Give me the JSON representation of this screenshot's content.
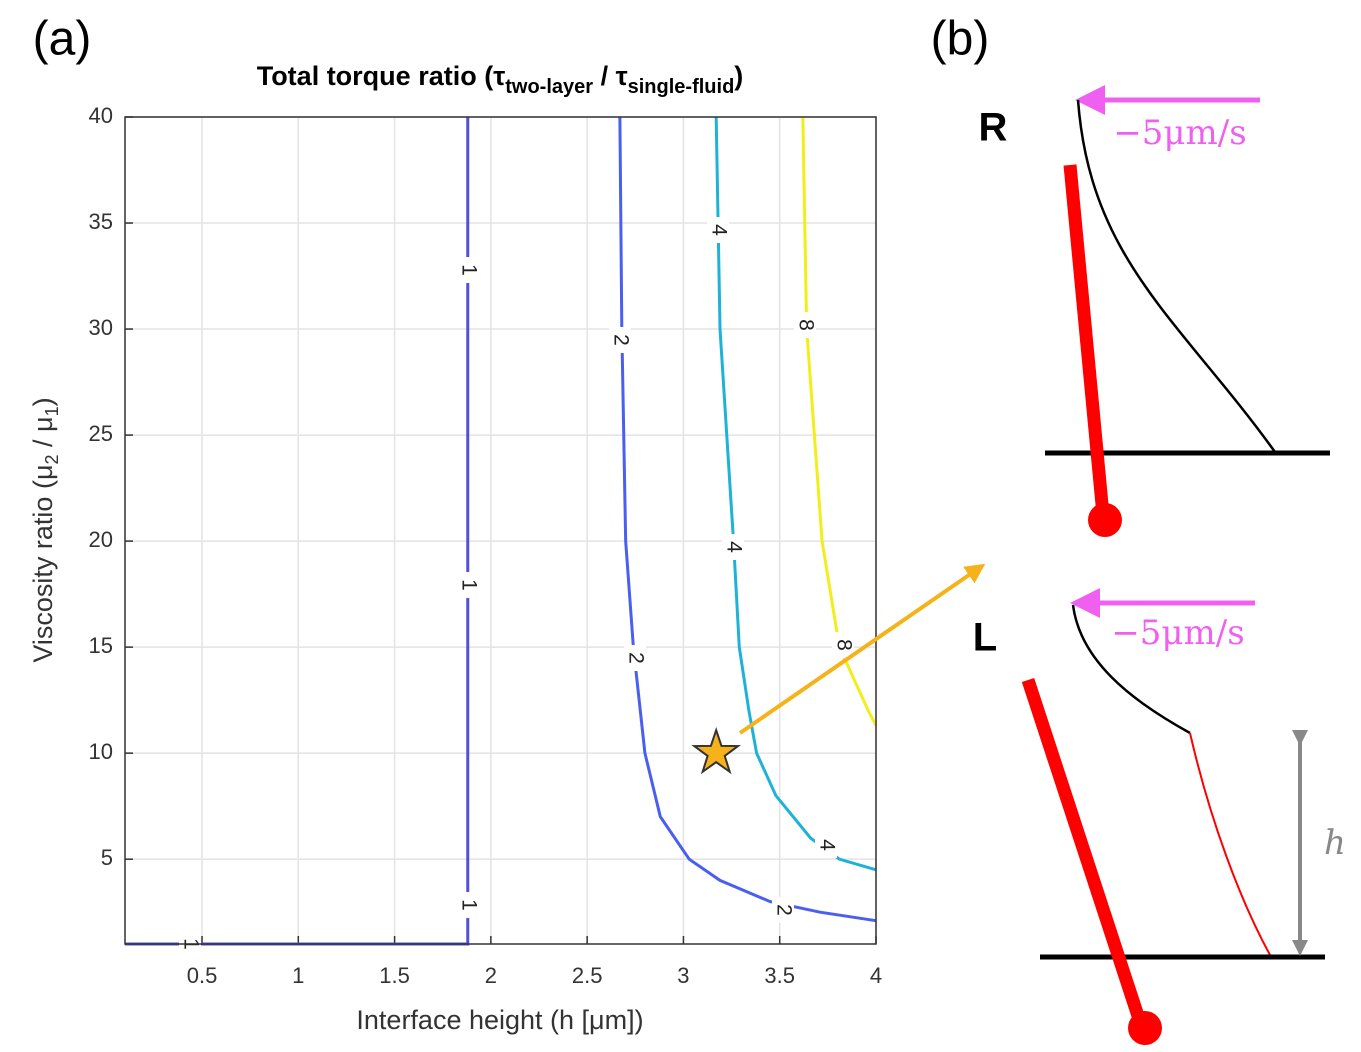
{
  "chart_data": {
    "type": "contour",
    "panel_label": "(a)",
    "title_parts": [
      "Total torque ratio (τ",
      "two-layer",
      " / τ",
      "single-fluid",
      ")"
    ],
    "xlabel": "Interface height (h [μm])",
    "ylabel_parts": [
      "Viscosity ratio (μ",
      "2",
      " / μ",
      "1",
      ")"
    ],
    "xlim": [
      0.1,
      4
    ],
    "ylim": [
      1,
      40
    ],
    "xticks": [
      0.5,
      1,
      1.5,
      2,
      2.5,
      3,
      3.5,
      4
    ],
    "yticks": [
      5,
      10,
      15,
      20,
      25,
      30,
      35,
      40
    ],
    "grid": true,
    "series": [
      {
        "name": "1",
        "color": "#5050d8",
        "x": [
          0.1,
          1.88,
          1.88
        ],
        "y": [
          1,
          1,
          40
        ]
      },
      {
        "name": "2",
        "color": "#4a5ef0",
        "x": [
          2.67,
          2.68,
          2.7,
          2.74,
          2.8,
          2.88,
          3.03,
          3.19,
          3.45,
          3.71,
          4.0
        ],
        "y": [
          40,
          30,
          20,
          15,
          10,
          7,
          5,
          4,
          3,
          2.5,
          2.1
        ]
      },
      {
        "name": "4",
        "color": "#1fb2d8",
        "x": [
          3.17,
          3.19,
          3.26,
          3.29,
          3.34,
          3.38,
          3.48,
          3.66,
          3.81,
          4.0
        ],
        "y": [
          40,
          30,
          20,
          15,
          12,
          10,
          8,
          6,
          5,
          4.5
        ]
      },
      {
        "name": "8",
        "color": "#f2ee1c",
        "x": [
          3.62,
          3.64,
          3.72,
          3.81,
          3.96,
          4.0
        ],
        "y": [
          40,
          30,
          20,
          15,
          12,
          11.3
        ]
      }
    ],
    "marker": {
      "x": 3.17,
      "y": 10,
      "color": "#f5b21b"
    }
  },
  "diagram": {
    "panel_label": "(b)",
    "top_label": "R",
    "bottom_label": "L",
    "top_velocity": "−5μm/s",
    "bottom_velocity": "−5μm/s",
    "height_label": "h"
  }
}
